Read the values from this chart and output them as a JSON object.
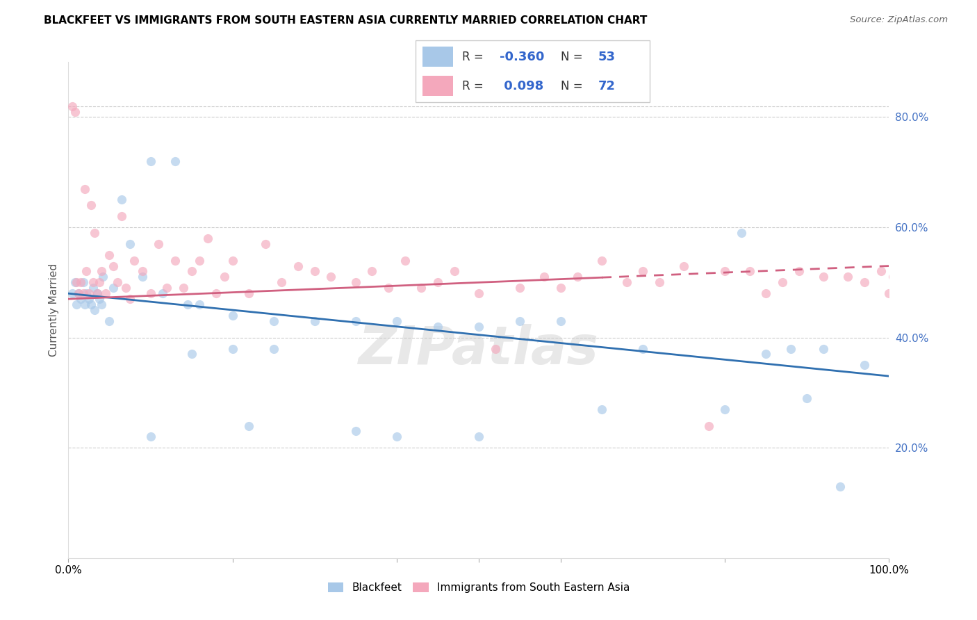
{
  "title": "BLACKFEET VS IMMIGRANTS FROM SOUTH EASTERN ASIA CURRENTLY MARRIED CORRELATION CHART",
  "source": "Source: ZipAtlas.com",
  "ylabel": "Currently Married",
  "blue_color": "#a8c8e8",
  "pink_color": "#f4a8bc",
  "blue_line_color": "#3070b0",
  "pink_line_color": "#d06080",
  "watermark": "ZIPatlas",
  "right_yticks": [
    20.0,
    40.0,
    60.0,
    80.0
  ],
  "blue_x": [
    0.5,
    0.8,
    1.0,
    1.2,
    1.5,
    1.8,
    2.0,
    2.2,
    2.5,
    2.8,
    3.0,
    3.2,
    3.5,
    3.8,
    4.0,
    4.2,
    5.0,
    5.5,
    6.5,
    7.5,
    9.0,
    10.0,
    11.5,
    13.0,
    14.5,
    16.0,
    20.0,
    22.0,
    25.0,
    30.0,
    35.0,
    40.0,
    45.0,
    50.0,
    55.0,
    60.0,
    65.0,
    70.0,
    80.0,
    82.0,
    85.0,
    88.0,
    90.0,
    92.0,
    94.0,
    97.0,
    50.0,
    40.0,
    35.0,
    25.0,
    20.0,
    15.0,
    10.0
  ],
  "blue_y": [
    48.0,
    50.0,
    46.0,
    48.0,
    47.0,
    50.0,
    46.0,
    48.0,
    47.0,
    46.0,
    49.0,
    45.0,
    48.0,
    47.0,
    46.0,
    51.0,
    43.0,
    49.0,
    65.0,
    57.0,
    51.0,
    72.0,
    48.0,
    72.0,
    46.0,
    46.0,
    44.0,
    24.0,
    43.0,
    43.0,
    43.0,
    43.0,
    42.0,
    42.0,
    43.0,
    43.0,
    27.0,
    38.0,
    27.0,
    59.0,
    37.0,
    38.0,
    29.0,
    38.0,
    13.0,
    35.0,
    22.0,
    22.0,
    23.0,
    38.0,
    38.0,
    37.0,
    22.0
  ],
  "pink_x": [
    0.5,
    0.8,
    1.0,
    1.2,
    1.5,
    1.8,
    2.0,
    2.2,
    2.5,
    2.8,
    3.0,
    3.2,
    3.5,
    3.8,
    4.0,
    4.5,
    5.0,
    5.5,
    6.0,
    6.5,
    7.0,
    7.5,
    8.0,
    9.0,
    10.0,
    11.0,
    12.0,
    13.0,
    14.0,
    15.0,
    16.0,
    17.0,
    18.0,
    19.0,
    20.0,
    22.0,
    24.0,
    26.0,
    28.0,
    30.0,
    32.0,
    35.0,
    37.0,
    39.0,
    41.0,
    43.0,
    45.0,
    47.0,
    50.0,
    52.0,
    55.0,
    58.0,
    60.0,
    62.0,
    65.0,
    68.0,
    70.0,
    72.0,
    75.0,
    78.0,
    80.0,
    83.0,
    85.0,
    87.0,
    89.0,
    92.0,
    95.0,
    97.0,
    99.0,
    100.0,
    100.5,
    101.0
  ],
  "pink_y": [
    82.0,
    81.0,
    50.0,
    48.0,
    50.0,
    48.0,
    67.0,
    52.0,
    48.0,
    64.0,
    50.0,
    59.0,
    48.0,
    50.0,
    52.0,
    48.0,
    55.0,
    53.0,
    50.0,
    62.0,
    49.0,
    47.0,
    54.0,
    52.0,
    48.0,
    57.0,
    49.0,
    54.0,
    49.0,
    52.0,
    54.0,
    58.0,
    48.0,
    51.0,
    54.0,
    48.0,
    57.0,
    50.0,
    53.0,
    52.0,
    51.0,
    50.0,
    52.0,
    49.0,
    54.0,
    49.0,
    50.0,
    52.0,
    48.0,
    38.0,
    49.0,
    51.0,
    49.0,
    51.0,
    54.0,
    50.0,
    52.0,
    50.0,
    53.0,
    24.0,
    52.0,
    52.0,
    48.0,
    50.0,
    52.0,
    51.0,
    51.0,
    50.0,
    52.0,
    48.0,
    51.0,
    54.0
  ]
}
